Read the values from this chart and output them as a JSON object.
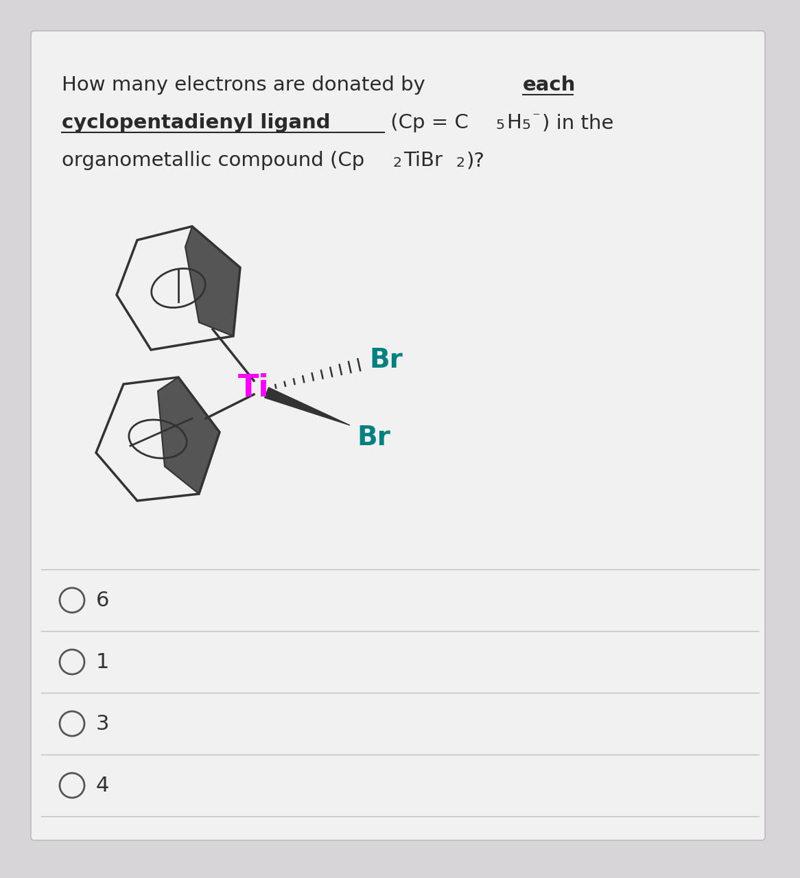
{
  "bg_color": "#d8d5d8",
  "card_color": "#f2f1f2",
  "card_border_color": "#bbbbbb",
  "ti_color": "#ff00ff",
  "br_color": "#008080",
  "text_color": "#2a2a2a",
  "option_text_color": "#333333",
  "line_color": "#c0c0c0",
  "font_size_question": 21,
  "font_size_options": 22,
  "options": [
    "6",
    "1",
    "3",
    "4"
  ]
}
